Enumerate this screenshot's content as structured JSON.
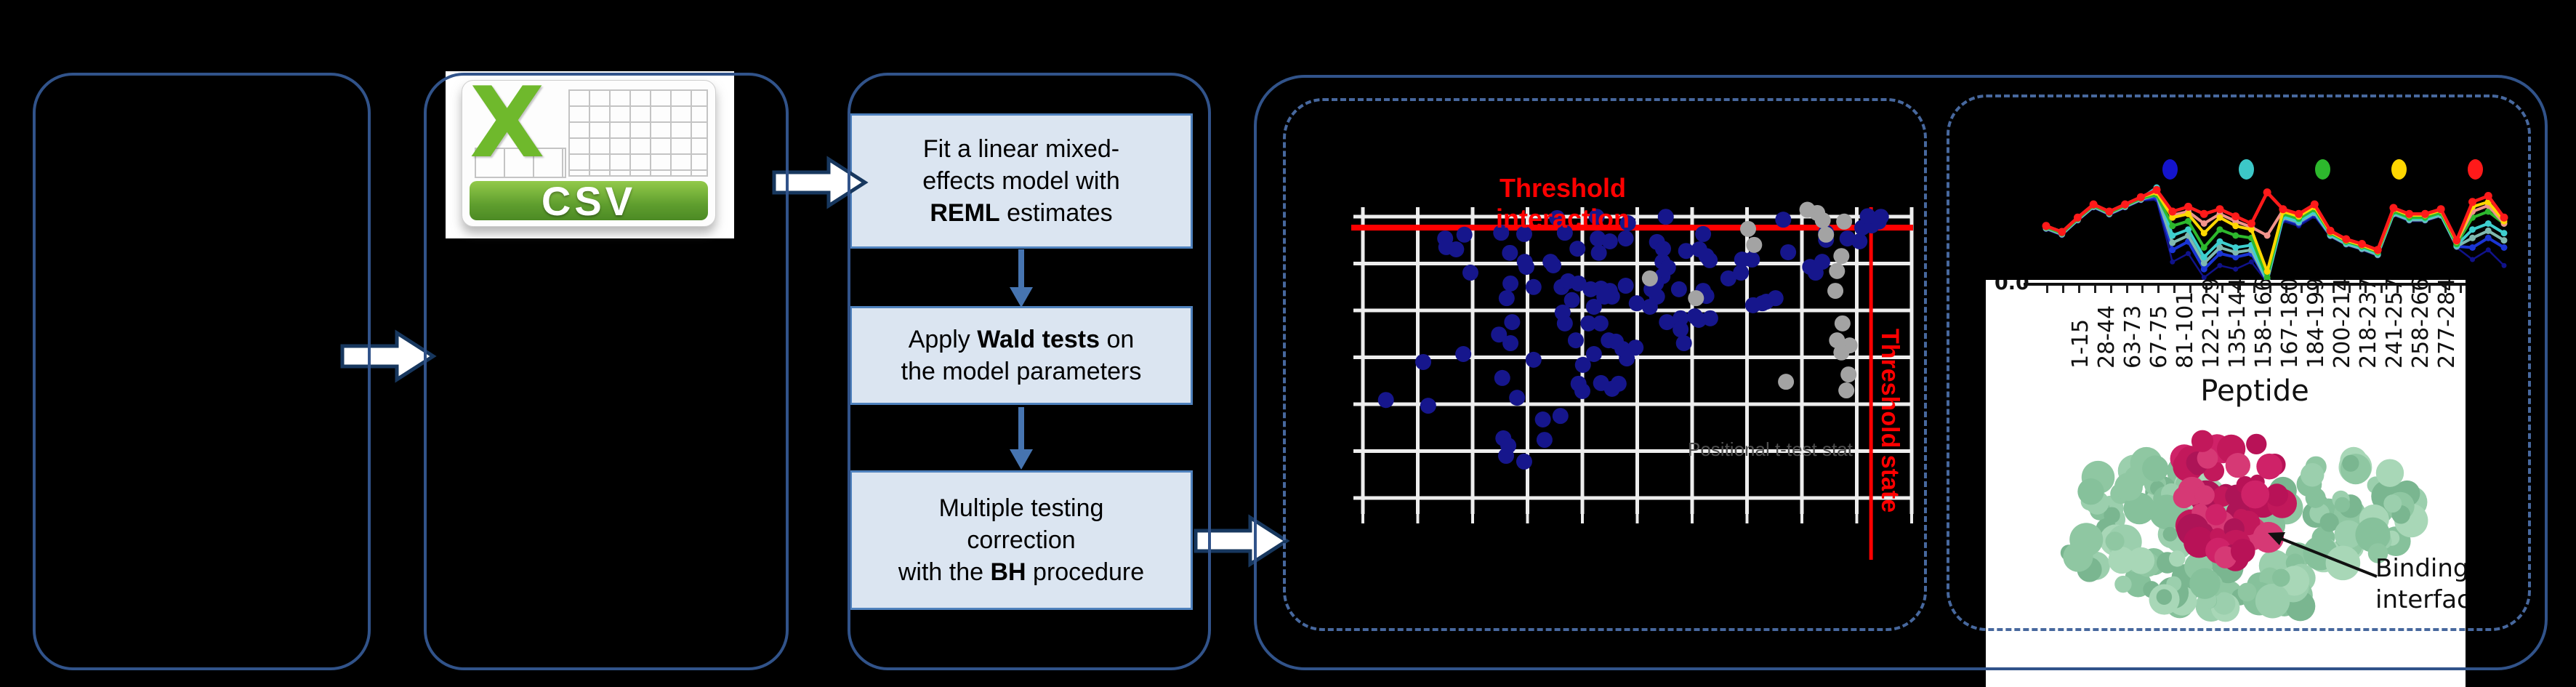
{
  "figure": {
    "background": "#000000",
    "border_color": "#31538a",
    "dashed_border_color": "#47689e"
  },
  "csv_icon": {
    "x_letter": "X",
    "label": "CSV",
    "green": "#6fb92c",
    "banner_green": "#5f9e2e"
  },
  "flow_steps": [
    {
      "lines": [
        [
          {
            "t": "Fit a linear mixed-"
          }
        ],
        [
          {
            "t": "effects model with"
          }
        ],
        [
          {
            "t": "REML",
            "b": true
          },
          {
            "t": " estimates"
          }
        ]
      ]
    },
    {
      "lines": [
        [
          {
            "t": "Apply "
          },
          {
            "t": "Wald tests",
            "b": true
          },
          {
            "t": " on"
          }
        ],
        [
          {
            "t": "the model parameters"
          }
        ]
      ]
    },
    {
      "lines": [
        [
          {
            "t": "Multiple testing"
          }
        ],
        [
          {
            "t": "correction"
          }
        ],
        [
          {
            "t": "with the "
          },
          {
            "t": "BH",
            "b": true
          },
          {
            "t": " procedure"
          }
        ]
      ]
    }
  ],
  "protein": {
    "annotation_lines": [
      "Binding",
      "interface"
    ],
    "surface_color": "#9bcfad",
    "peptide_color": "#c2185b"
  },
  "chart_data": [
    {
      "type": "scatter",
      "title": "Threshold interaction",
      "state_label": "Threshold state",
      "xlabel": "Positional t-test stat",
      "ylabel": "",
      "grid": {
        "x_gridlines": 11,
        "y_gridlines": 7,
        "grid_on": true
      },
      "threshold_y_pct": 9.6,
      "threshold_x_pct": 92.6,
      "colors": {
        "blue": "#16168c",
        "gray": "#a3a3a3",
        "threshold": "#ff0000",
        "grid": "#ededed"
      },
      "points_blue": [
        [
          35.4,
          6.6
        ],
        [
          42.6,
          6.2
        ],
        [
          48.3,
          8.2
        ],
        [
          15.0,
          13.0
        ],
        [
          15.2,
          15.7
        ],
        [
          17.0,
          16.4
        ],
        [
          18.5,
          11.8
        ],
        [
          25.2,
          11.2
        ],
        [
          26.8,
          17.5
        ],
        [
          29.4,
          11.6
        ],
        [
          29.5,
          20.3
        ],
        [
          29.8,
          21.9
        ],
        [
          34.2,
          20.3
        ],
        [
          34.7,
          21.4
        ],
        [
          36.8,
          11.2
        ],
        [
          39.1,
          16.2
        ],
        [
          42.8,
          13.0
        ],
        [
          43.0,
          17.5
        ],
        [
          45.0,
          13.9
        ],
        [
          47.9,
          13.0
        ],
        [
          19.6,
          23.7
        ],
        [
          26.9,
          27.1
        ],
        [
          31.1,
          28.2
        ],
        [
          26.2,
          31.7
        ],
        [
          36.2,
          28.2
        ],
        [
          37.4,
          26.4
        ],
        [
          39.3,
          27.1
        ],
        [
          38.1,
          32.3
        ],
        [
          41.5,
          28.9
        ],
        [
          43.4,
          28.7
        ],
        [
          44.0,
          31.2
        ],
        [
          45.0,
          29.4
        ],
        [
          45.4,
          31.2
        ],
        [
          47.9,
          27.8
        ],
        [
          49.9,
          33.3
        ],
        [
          36.4,
          36.2
        ],
        [
          42.1,
          34.4
        ],
        [
          27.2,
          39.2
        ],
        [
          36.8,
          39.6
        ],
        [
          41.1,
          39.6
        ],
        [
          43.3,
          39.6
        ],
        [
          24.8,
          43.1
        ],
        [
          26.9,
          45.8
        ],
        [
          38.8,
          44.9
        ],
        [
          44.8,
          44.9
        ],
        [
          46.1,
          45.3
        ],
        [
          47.3,
          47.6
        ],
        [
          49.7,
          47.2
        ],
        [
          18.3,
          49.2
        ],
        [
          42.1,
          49.2
        ],
        [
          48.1,
          50.6
        ],
        [
          11.0,
          51.7
        ],
        [
          31.1,
          51.0
        ],
        [
          40.1,
          52.6
        ],
        [
          25.4,
          56.7
        ],
        [
          39.3,
          58.5
        ],
        [
          40.0,
          60.8
        ],
        [
          43.4,
          58.3
        ],
        [
          45.4,
          60.1
        ],
        [
          46.6,
          58.5
        ],
        [
          4.2,
          63.6
        ],
        [
          11.9,
          65.4
        ],
        [
          28.1,
          62.9
        ],
        [
          32.8,
          69.7
        ],
        [
          36.0,
          68.6
        ],
        [
          25.6,
          75.6
        ],
        [
          26.5,
          77.9
        ],
        [
          33.1,
          76.1
        ],
        [
          26.1,
          81.1
        ],
        [
          29.4,
          82.9
        ],
        [
          55.2,
          6.2
        ],
        [
          76.6,
          7.1
        ],
        [
          94.4,
          6.2
        ],
        [
          92.7,
          8.9
        ],
        [
          62.0,
          11.6
        ],
        [
          53.6,
          14.1
        ],
        [
          54.7,
          16.2
        ],
        [
          58.9,
          16.9
        ],
        [
          61.3,
          16.4
        ],
        [
          62.6,
          18.5
        ],
        [
          63.2,
          19.8
        ],
        [
          54.6,
          20.3
        ],
        [
          55.6,
          22.1
        ],
        [
          54.6,
          24.8
        ],
        [
          53.4,
          27.1
        ],
        [
          52.6,
          28.9
        ],
        [
          53.6,
          31.2
        ],
        [
          52.3,
          34.4
        ],
        [
          57.6,
          28.9
        ],
        [
          62.0,
          29.4
        ],
        [
          62.6,
          31.0
        ],
        [
          66.6,
          25.5
        ],
        [
          68.9,
          23.7
        ],
        [
          69.1,
          19.6
        ],
        [
          70.9,
          19.6
        ],
        [
          71.1,
          33.9
        ],
        [
          72.8,
          33.3
        ],
        [
          73.5,
          32.8
        ],
        [
          75.2,
          31.7
        ],
        [
          77.5,
          17.3
        ],
        [
          81.5,
          21.9
        ],
        [
          82.5,
          23.7
        ],
        [
          83.7,
          20.3
        ],
        [
          84.4,
          11.2
        ],
        [
          84.4,
          13.4
        ],
        [
          88.3,
          13.0
        ],
        [
          90.5,
          13.9
        ],
        [
          91.0,
          9.6
        ],
        [
          94.0,
          7.7
        ],
        [
          55.4,
          39.2
        ],
        [
          57.9,
          38.0
        ],
        [
          60.5,
          37.4
        ],
        [
          61.2,
          38.5
        ],
        [
          63.3,
          38.0
        ],
        [
          57.9,
          41.5
        ],
        [
          58.5,
          45.8
        ],
        [
          92.0,
          6.0
        ]
      ],
      "points_gray": [
        [
          52.3,
          25.5
        ],
        [
          60.7,
          31.7
        ],
        [
          70.2,
          10.0
        ],
        [
          71.3,
          15.0
        ],
        [
          82.8,
          5.0
        ],
        [
          83.8,
          7.3
        ],
        [
          84.4,
          11.8
        ],
        [
          87.7,
          7.7
        ],
        [
          87.2,
          18.5
        ],
        [
          86.4,
          23.2
        ],
        [
          86.1,
          29.4
        ],
        [
          87.4,
          39.6
        ],
        [
          86.4,
          44.9
        ],
        [
          88.7,
          46.5
        ],
        [
          87.2,
          48.7
        ],
        [
          88.5,
          55.6
        ],
        [
          88.1,
          60.6
        ],
        [
          77.1,
          57.9
        ],
        [
          81.0,
          4.0
        ]
      ]
    },
    {
      "type": "line",
      "xlabel": "Peptide",
      "ylabel": "",
      "y_first_tick": "0.0",
      "grid": {
        "grid_on": false
      },
      "legend_position": "top",
      "legend_colors": [
        "#1414cd",
        "#3cc8c8",
        "#2db82d",
        "#ffd700",
        "#ff1a1a"
      ],
      "categories": [
        "1-15",
        "28-44",
        "63-73",
        "67-75",
        "81-101",
        "122-129",
        "135-144",
        "158-166",
        "167-180",
        "184-199",
        "200-214",
        "218-237",
        "241-257",
        "258-266",
        "277-284"
      ],
      "series": [
        {
          "name": "navy",
          "color": "#10128a",
          "width": 2.5,
          "marker_r": 3.5,
          "values": [
            0.45,
            0.4,
            0.52,
            0.63,
            0.57,
            0.63,
            0.69,
            0.7,
            0.18,
            0.25,
            0.05,
            0.15,
            0.12,
            0.18,
            0.01,
            0.52,
            0.48,
            0.56,
            0.39,
            0.32,
            0.28,
            0.23,
            0.57,
            0.52,
            0.52,
            0.56,
            0.3,
            0.2,
            0.28,
            0.15
          ]
        },
        {
          "name": "blue",
          "color": "#1a35d4",
          "width": 4,
          "marker_r": 4.5,
          "values": [
            0.46,
            0.41,
            0.53,
            0.64,
            0.58,
            0.64,
            0.7,
            0.72,
            0.28,
            0.35,
            0.12,
            0.25,
            0.22,
            0.25,
            0.02,
            0.54,
            0.5,
            0.58,
            0.4,
            0.33,
            0.29,
            0.24,
            0.58,
            0.53,
            0.53,
            0.57,
            0.31,
            0.3,
            0.38,
            0.3
          ]
        },
        {
          "name": "teal",
          "color": "#7fb9b0",
          "width": 4,
          "marker_r": 4.5,
          "values": [
            0.46,
            0.41,
            0.53,
            0.64,
            0.58,
            0.64,
            0.7,
            0.74,
            0.34,
            0.4,
            0.17,
            0.3,
            0.26,
            0.28,
            0.02,
            0.55,
            0.51,
            0.59,
            0.4,
            0.33,
            0.29,
            0.24,
            0.58,
            0.53,
            0.53,
            0.57,
            0.31,
            0.38,
            0.44,
            0.36
          ]
        },
        {
          "name": "cyan",
          "color": "#3ecfcf",
          "width": 4,
          "marker_r": 4.5,
          "values": [
            0.47,
            0.42,
            0.54,
            0.65,
            0.59,
            0.65,
            0.71,
            0.8,
            0.4,
            0.45,
            0.22,
            0.35,
            0.3,
            0.32,
            0.03,
            0.56,
            0.52,
            0.6,
            0.41,
            0.34,
            0.3,
            0.25,
            0.59,
            0.54,
            0.54,
            0.58,
            0.32,
            0.45,
            0.5,
            0.42
          ]
        },
        {
          "name": "green",
          "color": "#2db82d",
          "width": 4,
          "marker_r": 4.5,
          "values": [
            0.47,
            0.42,
            0.54,
            0.65,
            0.59,
            0.65,
            0.71,
            0.74,
            0.48,
            0.52,
            0.3,
            0.45,
            0.4,
            0.38,
            0.05,
            0.58,
            0.54,
            0.62,
            0.42,
            0.35,
            0.31,
            0.26,
            0.6,
            0.55,
            0.55,
            0.59,
            0.33,
            0.55,
            0.6,
            0.5
          ]
        },
        {
          "name": "salmon",
          "color": "#f2948c",
          "width": 4,
          "marker_r": 4.5,
          "values": [
            0.48,
            0.43,
            0.55,
            0.66,
            0.6,
            0.66,
            0.72,
            0.77,
            0.57,
            0.6,
            0.5,
            0.58,
            0.52,
            0.47,
            0.4,
            0.61,
            0.57,
            0.65,
            0.43,
            0.36,
            0.32,
            0.27,
            0.62,
            0.57,
            0.57,
            0.61,
            0.35,
            0.6,
            0.65,
            0.5
          ]
        },
        {
          "name": "yellow",
          "color": "#ffd700",
          "width": 4,
          "marker_r": 4.5,
          "values": [
            0.48,
            0.43,
            0.55,
            0.66,
            0.6,
            0.66,
            0.72,
            0.76,
            0.55,
            0.58,
            0.42,
            0.55,
            0.48,
            0.45,
            0.1,
            0.6,
            0.56,
            0.64,
            0.43,
            0.36,
            0.32,
            0.27,
            0.62,
            0.57,
            0.57,
            0.61,
            0.35,
            0.64,
            0.68,
            0.52
          ]
        },
        {
          "name": "red",
          "color": "#ff1a1a",
          "width": 4.5,
          "marker_r": 5.5,
          "values": [
            0.48,
            0.43,
            0.55,
            0.66,
            0.6,
            0.66,
            0.72,
            0.78,
            0.6,
            0.64,
            0.58,
            0.62,
            0.56,
            0.5,
            0.76,
            0.62,
            0.58,
            0.66,
            0.44,
            0.37,
            0.33,
            0.28,
            0.63,
            0.58,
            0.58,
            0.62,
            0.36,
            0.68,
            0.73,
            0.55
          ]
        }
      ]
    }
  ]
}
